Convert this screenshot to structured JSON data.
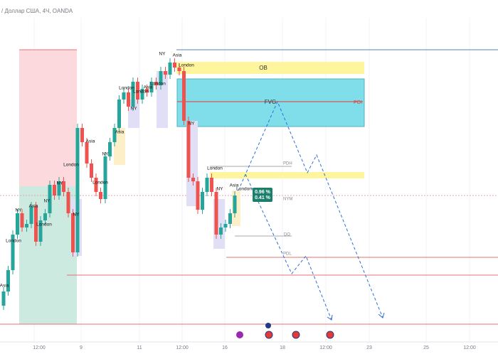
{
  "header": {
    "subtitle": "/ Доллар США, 4Ч, OANDA"
  },
  "zones": {
    "ob": "OB",
    "fvg": "FVG",
    "poi": "POI",
    "pdh": "PDH",
    "nym": "NYM",
    "do": "DO",
    "pdl": "PDL"
  },
  "badge": {
    "line1": "0.96 %",
    "line2": "0.41 %"
  },
  "sessions": [
    "NY",
    "Asia",
    "NY",
    "London",
    "London",
    "NY",
    "London",
    "NY",
    "Asia",
    "NY",
    "London",
    "Asia",
    "London",
    "NY",
    "London",
    "Asia",
    "London",
    "NY",
    "Asia",
    "London",
    "NY",
    "London",
    "NY",
    "Asia",
    "London",
    "Asia"
  ],
  "time_axis": [
    "12:00",
    "9",
    "11",
    "12:00",
    "16",
    "18",
    "12:00",
    "23",
    "25",
    "12:00"
  ]
}
